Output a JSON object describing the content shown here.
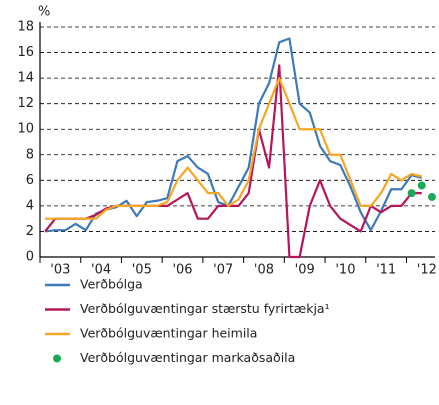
{
  "chart_data": {
    "type": "line",
    "y_label": "%",
    "x": [
      2003.125,
      2003.375,
      2003.625,
      2003.875,
      2004.125,
      2004.375,
      2004.625,
      2004.875,
      2005.125,
      2005.375,
      2005.625,
      2005.875,
      2006.125,
      2006.375,
      2006.625,
      2006.875,
      2007.125,
      2007.375,
      2007.625,
      2007.875,
      2008.125,
      2008.375,
      2008.625,
      2008.875,
      2009.125,
      2009.375,
      2009.625,
      2009.875,
      2010.125,
      2010.375,
      2010.625,
      2010.875,
      2011.125,
      2011.375,
      2011.625,
      2011.875,
      2012.125,
      2012.375,
      2012.625
    ],
    "series": [
      {
        "name": "Verðbólga",
        "color": "#3d7ab8",
        "mode": "lines",
        "values": [
          2.0,
          2.1,
          2.1,
          2.6,
          2.1,
          3.4,
          3.7,
          3.9,
          4.4,
          3.2,
          4.3,
          4.4,
          4.6,
          7.5,
          7.9,
          7.0,
          6.5,
          4.3,
          4.0,
          5.5,
          7.0,
          12.0,
          13.6,
          16.8,
          17.1,
          12.0,
          11.3,
          8.7,
          7.5,
          7.2,
          5.5,
          3.5,
          2.1,
          3.6,
          5.3,
          5.3,
          6.4,
          6.2,
          null
        ]
      },
      {
        "name": "Verðbólguvæntingar stærstu fyrirtækja¹",
        "color": "#b5155a",
        "mode": "lines",
        "values": [
          2.0,
          3.0,
          3.0,
          3.0,
          3.0,
          3.3,
          3.8,
          4.0,
          4.0,
          4.0,
          4.0,
          4.0,
          4.0,
          4.5,
          5.0,
          3.0,
          3.0,
          4.0,
          4.0,
          4.0,
          5.0,
          10.0,
          7.0,
          15.0,
          0.0,
          0.0,
          4.0,
          6.0,
          4.0,
          3.0,
          2.5,
          2.0,
          4.0,
          3.5,
          4.0,
          4.0,
          5.0,
          5.0,
          null
        ]
      },
      {
        "name": "Verðbólguvæntingar heimila",
        "color": "#f5a623",
        "mode": "lines",
        "values": [
          3.0,
          3.0,
          3.0,
          3.0,
          3.0,
          3.0,
          3.7,
          4.0,
          4.0,
          4.0,
          4.0,
          4.0,
          4.3,
          6.0,
          7.0,
          6.0,
          5.0,
          5.0,
          4.0,
          4.5,
          6.0,
          10.0,
          12.0,
          14.0,
          12.0,
          10.0,
          10.0,
          10.0,
          8.0,
          8.0,
          6.0,
          4.0,
          4.0,
          5.0,
          6.5,
          6.0,
          6.5,
          6.3,
          null
        ]
      },
      {
        "name": "Verðbólguvæntingar markaðsaðila",
        "color": "#1aaa55",
        "mode": "markers",
        "values": [
          null,
          null,
          null,
          null,
          null,
          null,
          null,
          null,
          null,
          null,
          null,
          null,
          null,
          null,
          null,
          null,
          null,
          null,
          null,
          null,
          null,
          null,
          null,
          null,
          null,
          null,
          null,
          null,
          null,
          null,
          null,
          null,
          null,
          null,
          null,
          null,
          5.0,
          5.6,
          4.7
        ]
      }
    ],
    "xlim": [
      2003,
      2012.7
    ],
    "xticks": [
      {
        "value": 2003.5,
        "label": "'03"
      },
      {
        "value": 2004.5,
        "label": "'04"
      },
      {
        "value": 2005.5,
        "label": "'05"
      },
      {
        "value": 2006.5,
        "label": "'06"
      },
      {
        "value": 2007.5,
        "label": "'07"
      },
      {
        "value": 2008.5,
        "label": "'08"
      },
      {
        "value": 2009.5,
        "label": "'09"
      },
      {
        "value": 2010.5,
        "label": "'10"
      },
      {
        "value": 2011.5,
        "label": "'11"
      },
      {
        "value": 2012.5,
        "label": "'12"
      }
    ],
    "ylim": [
      0,
      18
    ],
    "yticks": [
      0,
      2,
      4,
      6,
      8,
      10,
      12,
      14,
      16,
      18
    ],
    "grid": true
  }
}
